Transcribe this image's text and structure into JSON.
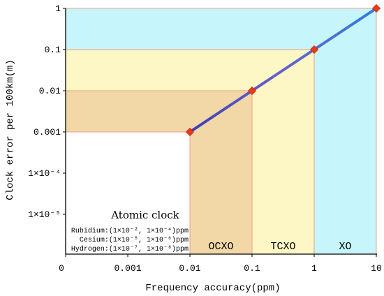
{
  "chart_data": {
    "type": "line",
    "xlabel": "Frequency accuracy(ppm)",
    "ylabel": "Clock error per 100km(m)",
    "x_scale": "log",
    "y_scale": "log",
    "x_ticks": [
      "0",
      "0.001",
      "0.01",
      "0.1",
      "1",
      "10"
    ],
    "y_ticks": [
      "1",
      "0.1",
      "0.01",
      "0.001",
      "1×10⁻⁴",
      "1×10⁻⁵"
    ],
    "series": [
      {
        "x": [
          0.01,
          0.1,
          1,
          10
        ],
        "y": [
          0.001,
          0.01,
          0.1,
          1
        ]
      }
    ],
    "regions": [
      {
        "label": "OCXO",
        "x_range": [
          0.01,
          0.1
        ],
        "y_max": 0.01,
        "color": "#f2d8a6"
      },
      {
        "label": "TCXO",
        "x_range": [
          0.1,
          1
        ],
        "y_max": 0.1,
        "color": "#fcf7c4"
      },
      {
        "label": "XO",
        "x_range": [
          1,
          10
        ],
        "y_max": 1,
        "color": "#c6f6fb"
      }
    ],
    "line_color": "#4a54c9",
    "marker_color": "#ea3a1a",
    "atomic_clock": {
      "title": "Atomic clock",
      "rows": [
        "Rubidium:(1×10⁻², 1×10⁻⁴)ppm",
        "Cesium:(1×10⁻⁵, 1×10⁻⁶)ppm",
        "Hydrogen:(1×10⁻⁷, 1×10⁻⁸)ppm"
      ]
    }
  }
}
